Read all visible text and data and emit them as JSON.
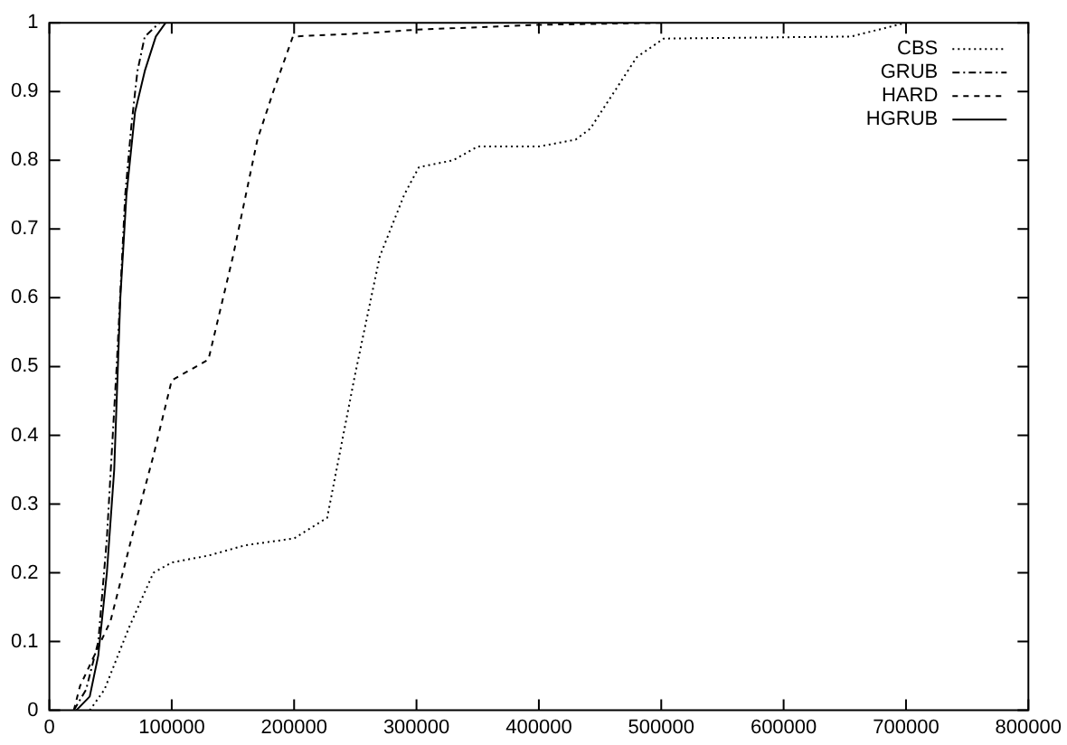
{
  "chart_data": {
    "type": "line",
    "xlim": [
      0,
      800000
    ],
    "xticks": [
      0,
      100000,
      200000,
      300000,
      400000,
      500000,
      600000,
      700000,
      800000
    ],
    "ylim": [
      0,
      1
    ],
    "yticks": [
      0,
      0.1,
      0.2,
      0.3,
      0.4,
      0.5,
      0.6,
      0.7,
      0.8,
      0.9,
      1
    ],
    "grid": false,
    "legend": "top right",
    "marker": "none",
    "series": [
      {
        "name": "CBS",
        "color": "#000000",
        "line_style": "dotted",
        "x": [
          33000,
          45000,
          65000,
          85000,
          100000,
          130000,
          160000,
          200000,
          227000,
          250000,
          270000,
          290000,
          302000,
          330000,
          350000,
          400000,
          430000,
          442000,
          480000,
          502000,
          655000,
          700000
        ],
        "values": [
          0,
          0.03,
          0.12,
          0.2,
          0.215,
          0.225,
          0.24,
          0.25,
          0.28,
          0.49,
          0.66,
          0.75,
          0.79,
          0.8,
          0.82,
          0.82,
          0.83,
          0.846,
          0.95,
          0.977,
          0.98,
          1
        ]
      },
      {
        "name": "GRUB",
        "color": "#000000",
        "line_style": "dashdot",
        "x": [
          20000,
          30000,
          40000,
          47000,
          55000,
          62000,
          67000,
          72000,
          78000,
          90000
        ],
        "values": [
          0,
          0.03,
          0.1,
          0.25,
          0.5,
          0.75,
          0.85,
          0.93,
          0.98,
          1
        ]
      },
      {
        "name": "HARD",
        "color": "#000000",
        "line_style": "dashed",
        "x": [
          20000,
          25000,
          50000,
          70000,
          85000,
          100000,
          130000,
          150000,
          170000,
          183000,
          199000,
          260000,
          300000,
          400000,
          500000
        ],
        "values": [
          0,
          0.035,
          0.13,
          0.27,
          0.37,
          0.48,
          0.51,
          0.66,
          0.83,
          0.9,
          0.98,
          0.985,
          0.99,
          0.997,
          1
        ]
      },
      {
        "name": "HGRUB",
        "color": "#000000",
        "line_style": "solid",
        "x": [
          22000,
          33000,
          40000,
          47000,
          53000,
          58000,
          63000,
          70000,
          78000,
          87000,
          95000
        ],
        "values": [
          0,
          0.02,
          0.08,
          0.2,
          0.35,
          0.6,
          0.75,
          0.87,
          0.93,
          0.98,
          1
        ]
      }
    ]
  }
}
